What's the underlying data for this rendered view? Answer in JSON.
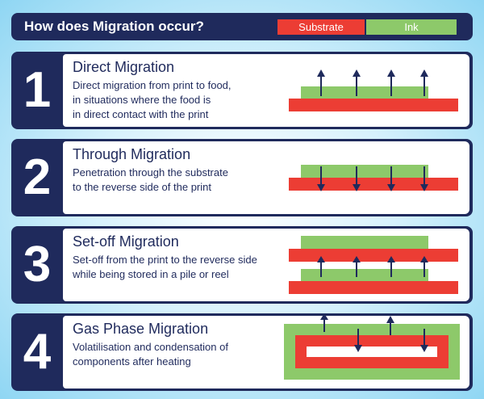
{
  "header": {
    "title": "How does Migration occur?"
  },
  "legend": {
    "substrate": "Substrate",
    "ink": "Ink"
  },
  "colors": {
    "navy": "#1f2a5c",
    "substrate": "#ec3d34",
    "ink": "#8dc96a",
    "arrow": "#1f2a5c"
  },
  "steps": [
    {
      "number": "1",
      "title": "Direct Migration",
      "lines": [
        "Direct migration from print to food,",
        "in situations where the food is",
        "in direct contact with the print"
      ]
    },
    {
      "number": "2",
      "title": "Through Migration",
      "lines": [
        "Penetration through the substrate",
        "to the reverse side of the print"
      ]
    },
    {
      "number": "3",
      "title": "Set-off Migration",
      "lines": [
        "Set-off from the print to the reverse side",
        "while being stored in a pile or reel"
      ]
    },
    {
      "number": "4",
      "title": "Gas Phase Migration",
      "lines": [
        "Volatilisation and condensation of",
        "components after heating"
      ]
    }
  ]
}
